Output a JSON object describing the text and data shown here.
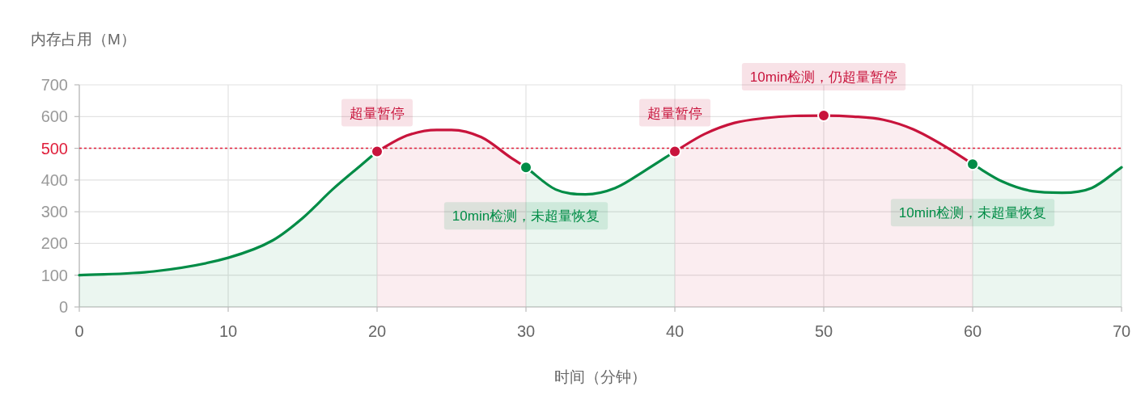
{
  "chart_data": {
    "type": "area",
    "xlabel": "时间（分钟）",
    "ylabel": "内存占用（M）",
    "xlim": [
      0,
      70
    ],
    "xticks": [
      0,
      10,
      20,
      30,
      40,
      50,
      60,
      70
    ],
    "ylim": [
      0,
      700
    ],
    "yticks": [
      0,
      100,
      200,
      300,
      400,
      500,
      600,
      700
    ],
    "grid": true,
    "series": [
      {
        "color": "#008c46",
        "x": [
          0,
          5,
          10,
          13,
          15,
          17,
          19,
          20
        ],
        "values": [
          100,
          112,
          155,
          210,
          280,
          370,
          450,
          490
        ]
      },
      {
        "color": "#c8143c",
        "x": [
          20,
          22,
          24,
          25,
          27,
          29,
          30
        ],
        "values": [
          490,
          540,
          558,
          558,
          535,
          470,
          440
        ]
      },
      {
        "color": "#008c46",
        "x": [
          30,
          32,
          34,
          36,
          38,
          40
        ],
        "values": [
          440,
          370,
          355,
          375,
          430,
          490
        ]
      },
      {
        "color": "#c8143c",
        "x": [
          40,
          42,
          44,
          46,
          48,
          50,
          52,
          54,
          56,
          58,
          60
        ],
        "values": [
          490,
          545,
          580,
          595,
          602,
          603,
          600,
          590,
          560,
          510,
          450
        ]
      },
      {
        "color": "#008c46",
        "x": [
          60,
          62,
          64,
          66,
          68,
          70
        ],
        "values": [
          450,
          395,
          365,
          360,
          375,
          440
        ]
      },
      {
        "type": "scatter",
        "marker": "circle",
        "color": "#c8143c",
        "x": [
          20,
          40,
          50
        ],
        "values": [
          490,
          490,
          603
        ]
      },
      {
        "type": "scatter",
        "marker": "circle",
        "color": "#008c46",
        "x": [
          30,
          60
        ],
        "values": [
          440,
          450
        ]
      }
    ],
    "ref_lines": [
      {
        "axis": "y",
        "value": 500,
        "color": "#e0203c",
        "line_style": "dotted"
      }
    ],
    "annotations": [
      {
        "text": "超量暂停",
        "x": 20,
        "y": 490
      },
      {
        "text": "10min检测，未超量恢复",
        "x": 30,
        "y": 440
      },
      {
        "text": "超量暂停",
        "x": 40,
        "y": 490
      },
      {
        "text": "10min检测，仍超量暂停",
        "x": 50,
        "y": 603
      },
      {
        "text": "10min检测，未超量恢复",
        "x": 60,
        "y": 450
      }
    ]
  }
}
